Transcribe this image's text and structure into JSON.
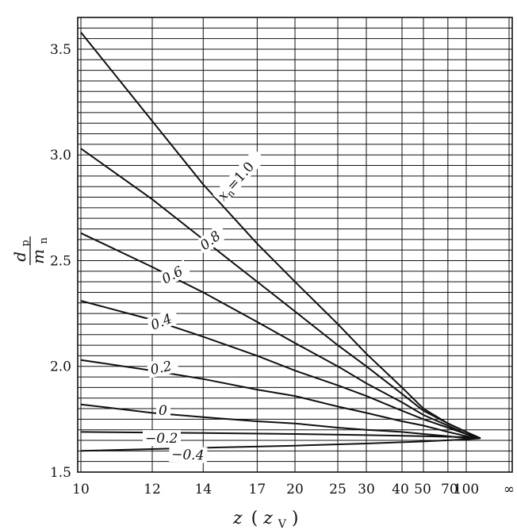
{
  "chart_data": {
    "type": "line",
    "x_axis": {
      "label_main": "z",
      "label_paren_open": "(",
      "label_paren_var": "z",
      "label_paren_sub": "V",
      "label_paren_close": ")",
      "ticks": [
        {
          "label": "10",
          "z": 10
        },
        {
          "label": "12",
          "z": 12
        },
        {
          "label": "14",
          "z": 14
        },
        {
          "label": "17",
          "z": 17
        },
        {
          "label": "20",
          "z": 20
        },
        {
          "label": "25",
          "z": 25
        },
        {
          "label": "30",
          "z": 30
        },
        {
          "label": "40",
          "z": 40
        },
        {
          "label": "50",
          "z": 50
        },
        {
          "label": "70",
          "z": 70
        },
        {
          "label": "100",
          "z": 100
        },
        {
          "label": "∞",
          "z": "inf"
        }
      ],
      "scale": "reciprocal"
    },
    "y_axis": {
      "label_num": "d",
      "label_num_sub": "p",
      "label_den": "m",
      "label_den_sub": "n",
      "range": [
        1.5,
        3.65
      ],
      "ticks": [
        {
          "label": "1.5",
          "value": 1.5
        },
        {
          "label": "2.0",
          "value": 2.0
        },
        {
          "label": "2.5",
          "value": 2.5
        },
        {
          "label": "3.0",
          "value": 3.0
        },
        {
          "label": "3.5",
          "value": 3.5
        }
      ],
      "gridline_step": 0.05
    },
    "series": [
      {
        "name": "xn=1.0",
        "label_var": "x",
        "label_sub": "n",
        "label_val": "=1.0",
        "points": [
          {
            "z": 10,
            "y": 3.58
          },
          {
            "z": 12,
            "y": 3.16
          },
          {
            "z": 14,
            "y": 2.86
          },
          {
            "z": 17,
            "y": 2.58
          },
          {
            "z": 20,
            "y": 2.4
          },
          {
            "z": 25,
            "y": 2.2
          },
          {
            "z": 30,
            "y": 2.06
          },
          {
            "z": 40,
            "y": 1.9
          },
          {
            "z": 50,
            "y": 1.8
          },
          {
            "z": 70,
            "y": 1.73
          },
          {
            "z": 100,
            "y": 1.69
          },
          {
            "z": 150,
            "y": 1.66
          }
        ]
      },
      {
        "name": "0.8",
        "label_val": "0.8",
        "points": [
          {
            "z": 10,
            "y": 3.03
          },
          {
            "z": 12,
            "y": 2.79
          },
          {
            "z": 14,
            "y": 2.6
          },
          {
            "z": 17,
            "y": 2.4
          },
          {
            "z": 20,
            "y": 2.26
          },
          {
            "z": 25,
            "y": 2.1
          },
          {
            "z": 30,
            "y": 2.0
          },
          {
            "z": 40,
            "y": 1.87
          },
          {
            "z": 50,
            "y": 1.79
          },
          {
            "z": 70,
            "y": 1.73
          },
          {
            "z": 100,
            "y": 1.69
          },
          {
            "z": 150,
            "y": 1.66
          }
        ]
      },
      {
        "name": "0.6",
        "label_val": "0.6",
        "points": [
          {
            "z": 10,
            "y": 2.63
          },
          {
            "z": 12,
            "y": 2.47
          },
          {
            "z": 14,
            "y": 2.35
          },
          {
            "z": 17,
            "y": 2.21
          },
          {
            "z": 20,
            "y": 2.11
          },
          {
            "z": 25,
            "y": 2.0
          },
          {
            "z": 30,
            "y": 1.92
          },
          {
            "z": 40,
            "y": 1.83
          },
          {
            "z": 50,
            "y": 1.77
          },
          {
            "z": 70,
            "y": 1.72
          },
          {
            "z": 100,
            "y": 1.68
          },
          {
            "z": 150,
            "y": 1.66
          }
        ]
      },
      {
        "name": "0.4",
        "label_val": "0.4",
        "points": [
          {
            "z": 10,
            "y": 2.31
          },
          {
            "z": 12,
            "y": 2.22
          },
          {
            "z": 14,
            "y": 2.14
          },
          {
            "z": 17,
            "y": 2.05
          },
          {
            "z": 20,
            "y": 1.98
          },
          {
            "z": 25,
            "y": 1.91
          },
          {
            "z": 30,
            "y": 1.86
          },
          {
            "z": 40,
            "y": 1.79
          },
          {
            "z": 50,
            "y": 1.75
          },
          {
            "z": 70,
            "y": 1.71
          },
          {
            "z": 100,
            "y": 1.68
          },
          {
            "z": 150,
            "y": 1.66
          }
        ]
      },
      {
        "name": "0.2",
        "label_val": "0.2",
        "points": [
          {
            "z": 10,
            "y": 2.03
          },
          {
            "z": 12,
            "y": 1.98
          },
          {
            "z": 14,
            "y": 1.94
          },
          {
            "z": 17,
            "y": 1.89
          },
          {
            "z": 20,
            "y": 1.86
          },
          {
            "z": 25,
            "y": 1.81
          },
          {
            "z": 30,
            "y": 1.78
          },
          {
            "z": 40,
            "y": 1.74
          },
          {
            "z": 50,
            "y": 1.72
          },
          {
            "z": 70,
            "y": 1.69
          },
          {
            "z": 100,
            "y": 1.67
          },
          {
            "z": 150,
            "y": 1.66
          }
        ]
      },
      {
        "name": "0",
        "label_val": "0",
        "points": [
          {
            "z": 10,
            "y": 1.82
          },
          {
            "z": 12,
            "y": 1.78
          },
          {
            "z": 14,
            "y": 1.76
          },
          {
            "z": 17,
            "y": 1.74
          },
          {
            "z": 20,
            "y": 1.73
          },
          {
            "z": 25,
            "y": 1.71
          },
          {
            "z": 30,
            "y": 1.7
          },
          {
            "z": 40,
            "y": 1.69
          },
          {
            "z": 50,
            "y": 1.68
          },
          {
            "z": 70,
            "y": 1.67
          },
          {
            "z": 100,
            "y": 1.66
          },
          {
            "z": 150,
            "y": 1.66
          }
        ]
      },
      {
        "name": "-0.2",
        "label_val": "−0.2",
        "points": [
          {
            "z": 10,
            "y": 1.69
          },
          {
            "z": 14,
            "y": 1.685
          },
          {
            "z": 20,
            "y": 1.68
          },
          {
            "z": 30,
            "y": 1.675
          },
          {
            "z": 50,
            "y": 1.67
          },
          {
            "z": 100,
            "y": 1.665
          },
          {
            "z": 150,
            "y": 1.66
          }
        ]
      },
      {
        "name": "-0.4",
        "label_val": "−0.4",
        "points": [
          {
            "z": 10,
            "y": 1.6
          },
          {
            "z": 14,
            "y": 1.615
          },
          {
            "z": 20,
            "y": 1.625
          },
          {
            "z": 30,
            "y": 1.635
          },
          {
            "z": 50,
            "y": 1.645
          },
          {
            "z": 100,
            "y": 1.655
          },
          {
            "z": 150,
            "y": 1.66
          }
        ]
      }
    ],
    "grid": true
  }
}
